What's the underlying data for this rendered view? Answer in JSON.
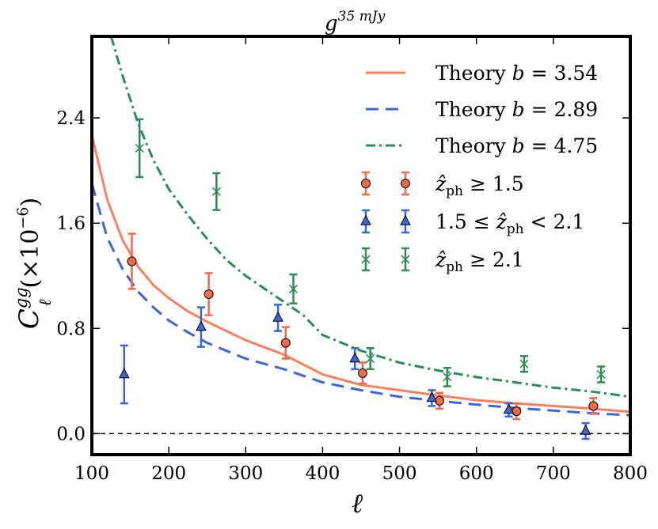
{
  "chart_data": {
    "type": "line",
    "title": "g",
    "title_superscript": "35 mJy",
    "xlabel": "ℓ",
    "ylabel": {
      "main": "C",
      "superscript": "gg",
      "subscript": "ℓ",
      "units": "(×10",
      "units_exp": "−6",
      "units_close": ")"
    },
    "xlim": [
      100,
      800
    ],
    "ylim": [
      -0.16,
      3.02
    ],
    "xticks": [
      100,
      200,
      300,
      400,
      500,
      600,
      700,
      800
    ],
    "xtick_labels": [
      "100",
      "200",
      "300",
      "400",
      "500",
      "600",
      "700",
      "800"
    ],
    "yticks": [
      0.0,
      0.8,
      1.6,
      2.4
    ],
    "ytick_labels": [
      "0.0",
      "0.8",
      "1.6",
      "2.4"
    ],
    "zero_line": 0.0,
    "legend_position": "top-right",
    "curves": [
      {
        "name": "Theory",
        "bias_symbol": "b",
        "bias_value": "3.54",
        "style": "solid",
        "color": "#fa8064",
        "x": [
          100,
          120,
          140,
          160,
          180,
          200,
          225,
          250,
          275,
          300,
          350,
          400,
          450,
          500,
          550,
          600,
          650,
          700,
          750,
          800
        ],
        "y": [
          2.27,
          1.78,
          1.47,
          1.27,
          1.13,
          1.03,
          0.93,
          0.85,
          0.78,
          0.71,
          0.6,
          0.45,
          0.37,
          0.33,
          0.29,
          0.255,
          0.23,
          0.21,
          0.19,
          0.165
        ]
      },
      {
        "name": "Theory",
        "bias_symbol": "b",
        "bias_value": "2.89",
        "style": "dashed",
        "color": "#3a66d9",
        "x": [
          100,
          120,
          140,
          160,
          180,
          200,
          225,
          250,
          275,
          300,
          350,
          400,
          450,
          500,
          550,
          600,
          650,
          700,
          750,
          800
        ],
        "y": [
          1.9,
          1.49,
          1.25,
          1.08,
          0.96,
          0.86,
          0.77,
          0.69,
          0.63,
          0.57,
          0.49,
          0.39,
          0.33,
          0.28,
          0.25,
          0.22,
          0.195,
          0.175,
          0.155,
          0.14
        ]
      },
      {
        "name": "Theory",
        "bias_symbol": "b",
        "bias_value": "4.75",
        "style": "dashdot",
        "color": "#2e8b57",
        "x": [
          125,
          140,
          160,
          180,
          200,
          225,
          250,
          275,
          300,
          350,
          375,
          400,
          450,
          500,
          550,
          600,
          650,
          700,
          750,
          800
        ],
        "y": [
          3.02,
          2.72,
          2.36,
          2.08,
          1.86,
          1.66,
          1.48,
          1.32,
          1.2,
          1.0,
          0.9,
          0.75,
          0.63,
          0.54,
          0.48,
          0.43,
          0.39,
          0.35,
          0.32,
          0.28
        ]
      }
    ],
    "series": [
      {
        "name": "ẑ_ph ≥ 1.5",
        "label_sub": "ph",
        "label_rest": "≥ 1.5",
        "marker": "circle",
        "color": "#f26b4b",
        "x": [
          152,
          252,
          352,
          452,
          552,
          652,
          752
        ],
        "y": [
          1.31,
          1.06,
          0.69,
          0.46,
          0.25,
          0.17,
          0.21
        ],
        "yerr": [
          0.21,
          0.16,
          0.12,
          0.08,
          0.06,
          0.06,
          0.06
        ]
      },
      {
        "name": "1.5 ≤ ẑ_ph < 2.1",
        "label_pre": "1.5 ≤",
        "label_sub": "ph",
        "label_rest": "< 2.1",
        "marker": "triangle",
        "color": "#3a66d9",
        "x": [
          142,
          242,
          342,
          442,
          542,
          642,
          742
        ],
        "y": [
          0.45,
          0.81,
          0.88,
          0.57,
          0.27,
          0.18,
          0.02
        ],
        "yerr": [
          0.22,
          0.15,
          0.1,
          0.08,
          0.06,
          0.05,
          0.06
        ]
      },
      {
        "name": "ẑ_ph ≥ 2.1",
        "label_sub": "ph",
        "label_rest": "≥ 2.1",
        "marker": "x",
        "color": "#2e8b57",
        "x": [
          162,
          262,
          362,
          462,
          562,
          662,
          762
        ],
        "y": [
          2.17,
          1.84,
          1.1,
          0.57,
          0.43,
          0.53,
          0.45
        ],
        "yerr": [
          0.22,
          0.14,
          0.11,
          0.08,
          0.07,
          0.06,
          0.06
        ]
      }
    ]
  }
}
